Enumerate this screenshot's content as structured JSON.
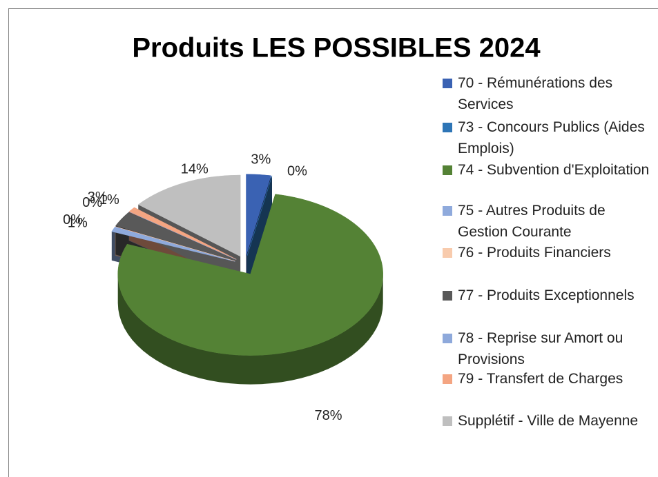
{
  "chart_data": {
    "type": "pie3d",
    "title": "Produits LES POSSIBLES 2024",
    "categories": [
      "70 - Rémunérations des Services",
      "73 - Concours Publics (Aides Emplois)",
      "74 - Subvention d'Exploitation",
      "75 - Autres Produits de Gestion Courante",
      "76 - Produits Financiers",
      "77 - Produits Exceptionnels",
      "78 - Reprise sur Amort ou Provisions",
      "79 - Transfert de Charges",
      "Supplétif - Ville de Mayenne"
    ],
    "values": [
      3,
      0,
      78,
      1,
      0,
      3,
      0,
      1,
      14
    ],
    "value_labels": [
      "3%",
      "0%",
      "78%",
      "1%",
      "0%",
      "3%",
      "0%",
      "1%",
      "14%"
    ],
    "colors": [
      "#3a62b3",
      "#2e75b6",
      "#548235",
      "#8faadc",
      "#f8cbad",
      "#595959",
      "#8ea9db",
      "#f4a582",
      "#bfbfbf"
    ],
    "legend": "right"
  }
}
